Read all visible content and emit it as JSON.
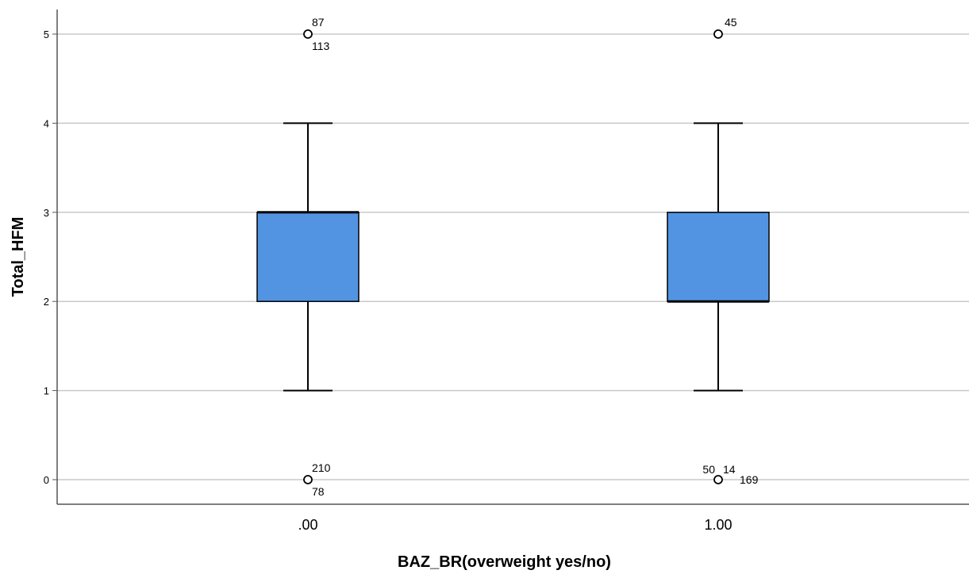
{
  "chart_data": {
    "type": "box",
    "xlabel": "BAZ_BR(overweight yes/no)",
    "ylabel": "Total_HFM",
    "ylim": [
      0,
      5
    ],
    "yticks": [
      "0",
      "1",
      "2",
      "3",
      "4",
      "5"
    ],
    "grid": "horizontal",
    "colors": {
      "box": "#5294e2",
      "grid": "#c8c8c8",
      "axis": "#555555",
      "line": "#000000"
    },
    "groups": [
      {
        "category": ".00",
        "whisker_low": 1,
        "q1": 2,
        "median": 3,
        "q3": 3,
        "whisker_high": 4,
        "outliers": [
          {
            "value": 5,
            "labels": [
              "87",
              "113"
            ]
          },
          {
            "value": 0,
            "labels": [
              "210",
              "78"
            ]
          }
        ]
      },
      {
        "category": "1.00",
        "whisker_low": 1,
        "q1": 2,
        "median": 2,
        "q3": 3,
        "whisker_high": 4,
        "outliers": [
          {
            "value": 5,
            "labels": [
              "45"
            ]
          },
          {
            "value": 0,
            "labels": [
              "50",
              "14",
              "169"
            ]
          }
        ]
      }
    ]
  }
}
